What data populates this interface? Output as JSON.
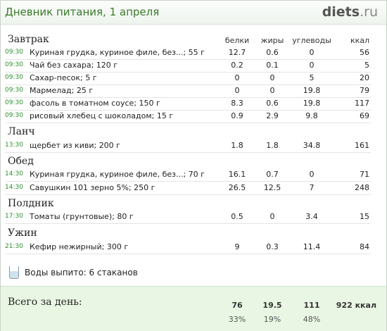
{
  "header": {
    "title": "Дневник питания, 1 апреля",
    "logo_main": "diets",
    "logo_suffix": ".ru"
  },
  "columns": {
    "protein": "белки",
    "fat": "жиры",
    "carbs": "углеводы",
    "kcal": "ккал"
  },
  "meals": [
    {
      "name": "Завтрак",
      "items": [
        {
          "time": "09:30",
          "name": "Куриная грудка, куриное филе, без...; 55 г",
          "protein": "12.7",
          "fat": "0.6",
          "carbs": "0",
          "kcal": "56"
        },
        {
          "time": "09:30",
          "name": "Чай без сахара; 120 г",
          "protein": "0.2",
          "fat": "0.1",
          "carbs": "0",
          "kcal": "5"
        },
        {
          "time": "09:30",
          "name": "Сахар-песок; 5 г",
          "protein": "0",
          "fat": "0",
          "carbs": "5",
          "kcal": "20"
        },
        {
          "time": "09:30",
          "name": "Мармелад; 25 г",
          "protein": "0",
          "fat": "0",
          "carbs": "19.8",
          "kcal": "79"
        },
        {
          "time": "09:30",
          "name": "фасоль в томатном соусе; 150 г",
          "protein": "8.3",
          "fat": "0.6",
          "carbs": "19.8",
          "kcal": "117"
        },
        {
          "time": "09:30",
          "name": "рисовый хлебец с шоколадом; 15 г",
          "protein": "0.9",
          "fat": "2.9",
          "carbs": "9.8",
          "kcal": "69"
        }
      ]
    },
    {
      "name": "Ланч",
      "items": [
        {
          "time": "13:30",
          "name": "щербет из киви; 200 г",
          "protein": "1.8",
          "fat": "1.8",
          "carbs": "34.8",
          "kcal": "161"
        }
      ]
    },
    {
      "name": "Обед",
      "items": [
        {
          "time": "14:30",
          "name": "Куриная грудка, куриное филе, без...; 70 г",
          "protein": "16.1",
          "fat": "0.7",
          "carbs": "0",
          "kcal": "71"
        },
        {
          "time": "14:30",
          "name": "Савушкин 101 зерно 5%; 250 г",
          "protein": "26.5",
          "fat": "12.5",
          "carbs": "7",
          "kcal": "248"
        }
      ]
    },
    {
      "name": "Полдник",
      "items": [
        {
          "time": "17:30",
          "name": "Томаты (грунтовые); 80 г",
          "protein": "0.5",
          "fat": "0",
          "carbs": "3.4",
          "kcal": "15"
        }
      ]
    },
    {
      "name": "Ужин",
      "items": [
        {
          "time": "21:30",
          "name": "Кефир нежирный; 300 г",
          "protein": "9",
          "fat": "0.3",
          "carbs": "11.4",
          "kcal": "84"
        }
      ]
    }
  ],
  "water": {
    "text": "Воды выпито: 6 стаканов",
    "icon": "glass-icon"
  },
  "totals": {
    "label": "Всего за день:",
    "protein": "76",
    "fat": "19.5",
    "carbs": "111",
    "kcal": "922 ккал",
    "protein_pct": "33%",
    "fat_pct": "19%",
    "carbs_pct": "48%"
  },
  "colors": {
    "time": "#2f8f2f",
    "title": "#3a7a2a",
    "totals_bg": "#e9f6e3"
  }
}
